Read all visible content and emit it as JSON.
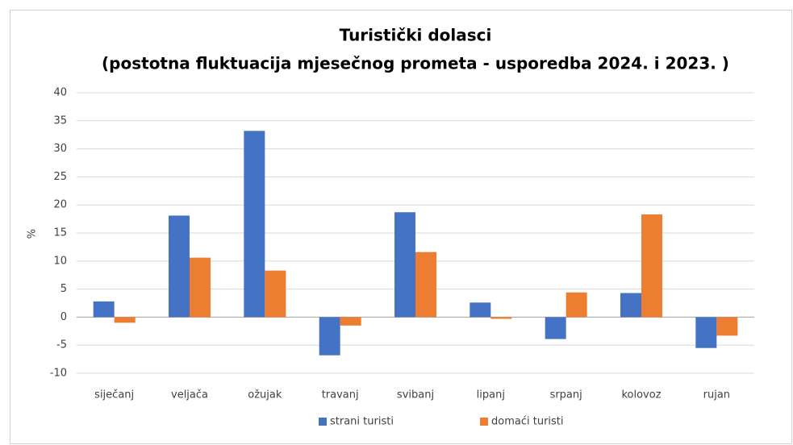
{
  "chart_data": {
    "type": "bar",
    "title": "Turistički dolasci",
    "subtitle": "(postotna fluktuacija mjesečnog prometa - usporedba 2024. i 2023. )",
    "y_label": "%",
    "categories": [
      "siječanj",
      "veljača",
      "ožujak",
      "travanj",
      "svibanj",
      "lipanj",
      "srpanj",
      "kolovoz",
      "rujan"
    ],
    "series": [
      {
        "name": "strani turisti",
        "color": "#4472c4",
        "values": [
          2.8,
          18.1,
          33.2,
          -6.8,
          18.7,
          2.6,
          -3.9,
          4.3,
          -5.5
        ]
      },
      {
        "name": "domaći turisti",
        "color": "#ed7d31",
        "values": [
          -1.0,
          10.6,
          8.3,
          -1.5,
          11.6,
          -0.3,
          4.4,
          18.3,
          -3.3
        ]
      }
    ],
    "ylim": [
      -10,
      40
    ],
    "yticks": [
      -10,
      -5,
      0,
      5,
      10,
      15,
      20,
      25,
      30,
      35,
      40
    ],
    "grid": true,
    "legend": "bottom"
  }
}
